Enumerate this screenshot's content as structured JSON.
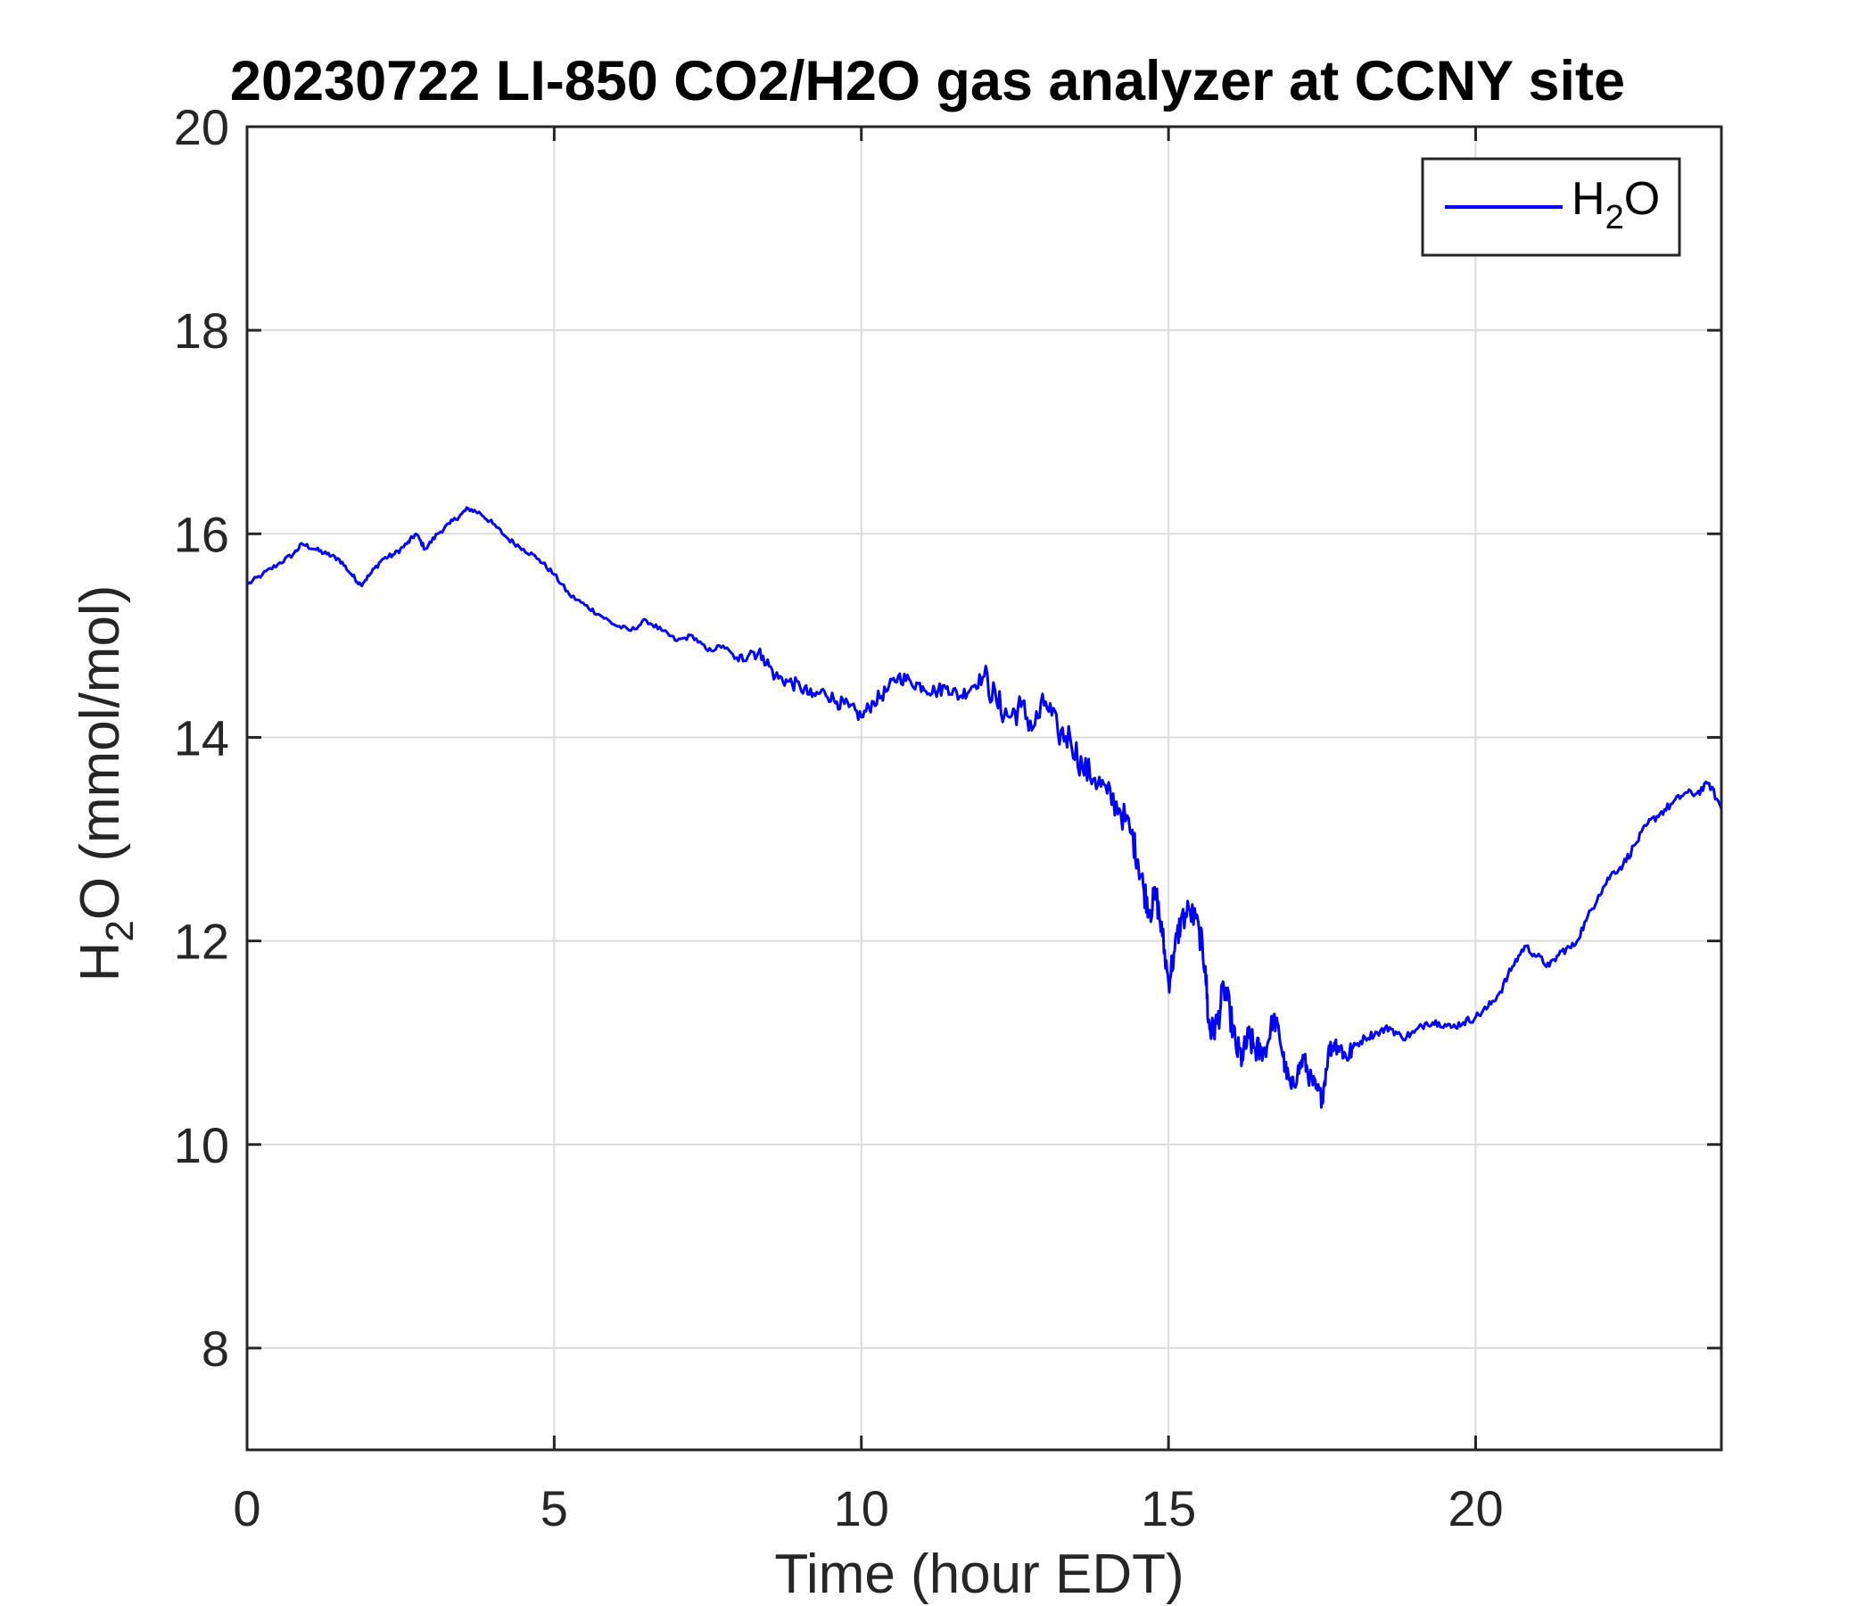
{
  "chart_data": {
    "type": "line",
    "title": "20230722 LI-850 CO2/H2O gas analyzer at CCNY site",
    "xlabel": "Time (hour EDT)",
    "ylabel": {
      "base": "H",
      "sub": "2",
      "rest": "O (mmol/mol)"
    },
    "xlim": [
      0,
      24
    ],
    "ylim": [
      7,
      20
    ],
    "xticks": [
      0,
      5,
      10,
      15,
      20
    ],
    "yticks": [
      8,
      10,
      12,
      14,
      16,
      18,
      20
    ],
    "grid": true,
    "legend_position": "top-right",
    "series": [
      {
        "name": {
          "base": "H",
          "sub": "2",
          "rest": "O"
        },
        "color": "#0000ff",
        "x": [
          0,
          0.25,
          0.5,
          0.75,
          0.9,
          1.1,
          1.3,
          1.5,
          1.7,
          1.85,
          2.0,
          2.2,
          2.4,
          2.6,
          2.75,
          2.9,
          3.1,
          3.3,
          3.5,
          3.6,
          3.8,
          4.0,
          4.25,
          4.5,
          4.75,
          5.0,
          5.25,
          5.5,
          5.75,
          6.0,
          6.25,
          6.5,
          6.75,
          7.0,
          7.25,
          7.5,
          7.75,
          8.0,
          8.2,
          8.4,
          8.6,
          8.8,
          9.0,
          9.2,
          9.4,
          9.6,
          9.8,
          10.0,
          10.2,
          10.4,
          10.6,
          10.8,
          11.0,
          11.2,
          11.4,
          11.6,
          11.8,
          12.0,
          12.2,
          12.4,
          12.6,
          12.8,
          13.0,
          13.2,
          13.4,
          13.6,
          13.8,
          14.0,
          14.2,
          14.4,
          14.5,
          14.6,
          14.7,
          14.8,
          14.9,
          15.0,
          15.1,
          15.2,
          15.35,
          15.5,
          15.6,
          15.65,
          15.7,
          15.8,
          15.9,
          16.0,
          16.1,
          16.2,
          16.3,
          16.4,
          16.5,
          16.6,
          16.7,
          16.8,
          16.9,
          17.0,
          17.1,
          17.2,
          17.3,
          17.4,
          17.5,
          17.6,
          17.7,
          17.8,
          17.9,
          18.0,
          18.2,
          18.4,
          18.6,
          18.8,
          19.0,
          19.2,
          19.4,
          19.6,
          19.8,
          20.0,
          20.2,
          20.4,
          20.6,
          20.8,
          21.0,
          21.2,
          21.4,
          21.6,
          21.8,
          22.0,
          22.2,
          22.4,
          22.6,
          22.8,
          23.0,
          23.2,
          23.4,
          23.6,
          23.8,
          24.0
        ],
        "y": [
          15.5,
          15.6,
          15.7,
          15.8,
          15.9,
          15.85,
          15.8,
          15.75,
          15.6,
          15.5,
          15.6,
          15.75,
          15.8,
          15.9,
          16.0,
          15.85,
          16.0,
          16.1,
          16.2,
          16.25,
          16.2,
          16.1,
          15.95,
          15.85,
          15.75,
          15.6,
          15.4,
          15.3,
          15.2,
          15.1,
          15.05,
          15.15,
          15.05,
          14.95,
          15.0,
          14.85,
          14.9,
          14.75,
          14.85,
          14.8,
          14.6,
          14.55,
          14.5,
          14.4,
          14.45,
          14.35,
          14.3,
          14.2,
          14.35,
          14.45,
          14.6,
          14.55,
          14.5,
          14.45,
          14.5,
          14.4,
          14.5,
          14.6,
          14.35,
          14.2,
          14.3,
          14.1,
          14.35,
          14.05,
          14.0,
          13.7,
          13.6,
          13.45,
          13.3,
          13.05,
          12.8,
          12.5,
          12.3,
          12.45,
          12.05,
          11.6,
          11.9,
          12.2,
          12.3,
          12.1,
          11.75,
          11.2,
          11.1,
          11.2,
          11.55,
          11.3,
          10.95,
          10.85,
          11.05,
          10.95,
          10.9,
          10.95,
          11.25,
          11.1,
          10.75,
          10.55,
          10.7,
          10.85,
          10.65,
          10.55,
          10.45,
          10.9,
          11.0,
          10.95,
          10.85,
          10.95,
          11.05,
          11.1,
          11.15,
          11.05,
          11.1,
          11.2,
          11.2,
          11.15,
          11.2,
          11.25,
          11.35,
          11.5,
          11.75,
          11.95,
          11.85,
          11.75,
          11.9,
          11.95,
          12.2,
          12.45,
          12.65,
          12.75,
          12.95,
          13.15,
          13.25,
          13.35,
          13.45,
          13.45,
          13.55,
          13.3
        ]
      }
    ]
  }
}
